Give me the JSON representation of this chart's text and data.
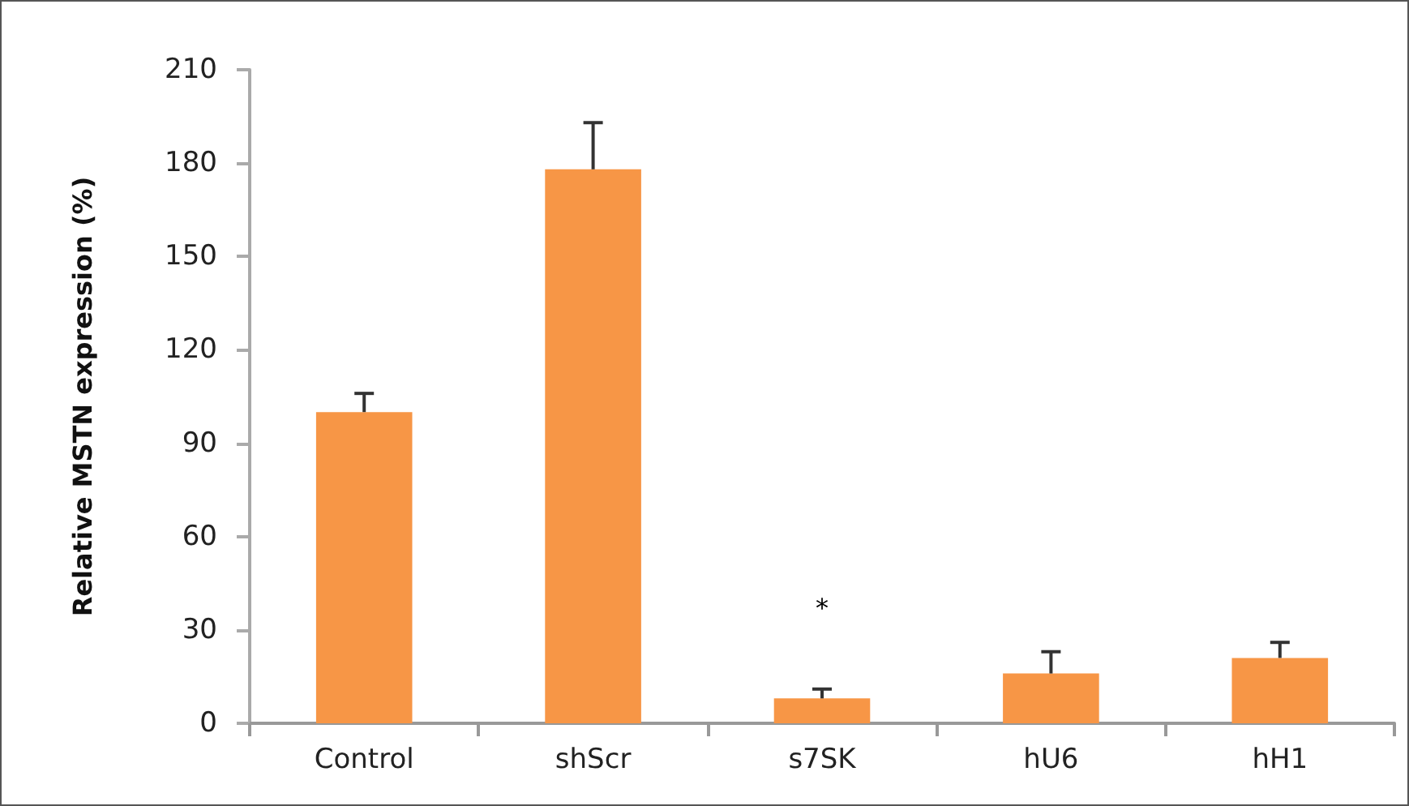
{
  "chart_data": {
    "type": "bar",
    "ylabel": "Relative MSTN expression (%)",
    "categories": [
      "Control",
      "shScr",
      "s7SK",
      "hU6",
      "hH1"
    ],
    "values": [
      100,
      178,
      8,
      16,
      21
    ],
    "errors": [
      [
        100,
        106
      ],
      [
        178,
        193
      ],
      [
        8,
        11
      ],
      [
        16,
        23
      ],
      [
        21,
        26
      ]
    ],
    "color": "#f79646",
    "ylim": [
      0,
      210
    ],
    "yticks": [
      0,
      30,
      60,
      90,
      120,
      150,
      180,
      210
    ],
    "grid": false,
    "annotations": [
      "*"
    ]
  }
}
